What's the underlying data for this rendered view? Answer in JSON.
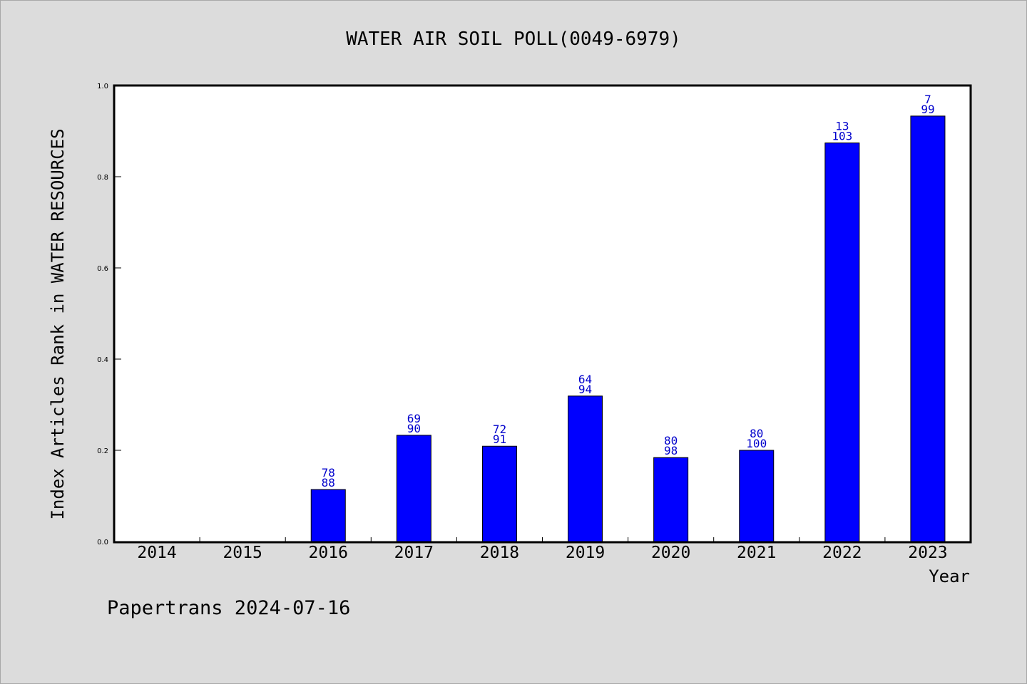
{
  "chart_data": {
    "type": "bar",
    "title": "WATER AIR SOIL POLL(0049-6979)",
    "xlabel": "Year",
    "ylabel": "Index Articles Rank in WATER RESOURCES",
    "categories": [
      "2014",
      "2015",
      "2016",
      "2017",
      "2018",
      "2019",
      "2020",
      "2021",
      "2022",
      "2023"
    ],
    "values": [
      0,
      0,
      0.114,
      0.233,
      0.209,
      0.319,
      0.184,
      0.2,
      0.874,
      0.933
    ],
    "rank_labels": [
      "",
      "",
      "78",
      "69",
      "72",
      "64",
      "80",
      "80",
      "13",
      "7"
    ],
    "total_labels": [
      "",
      "",
      "88",
      "90",
      "91",
      "94",
      "98",
      "100",
      "103",
      "99"
    ],
    "ylim": [
      0,
      1.0
    ],
    "yticks": [
      "0.0",
      "0.2",
      "0.4",
      "0.6",
      "0.8",
      "1.0"
    ],
    "grid": false,
    "bar_color": "#0000ff",
    "label_color": "#0000cc"
  },
  "footer": {
    "text": "Papertrans 2024-07-16"
  },
  "colors": {
    "background": "#dcdcdc",
    "plot_background": "#ffffff"
  }
}
